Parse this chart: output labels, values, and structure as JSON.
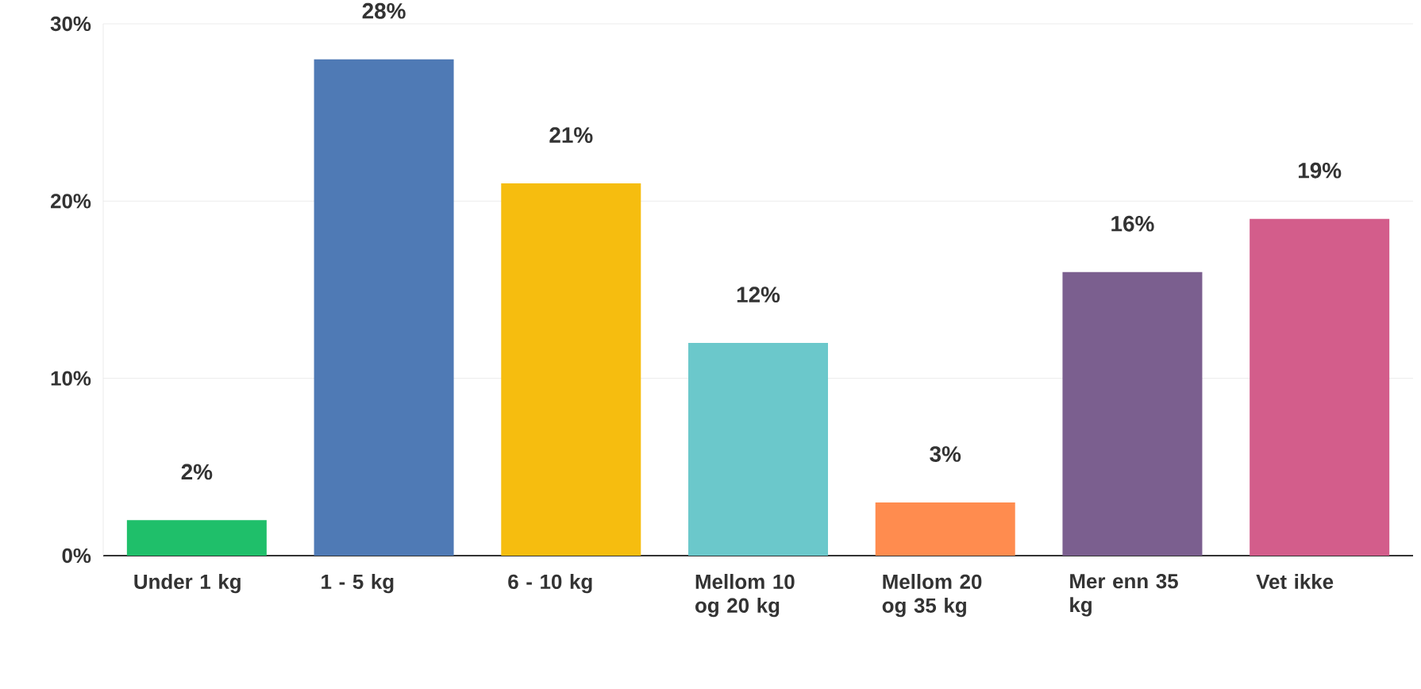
{
  "chart_data": {
    "type": "bar",
    "categories": [
      "Under 1 kg",
      "1 - 5 kg",
      "6 - 10 kg",
      "Mellom 10 og 20 kg",
      "Mellom 20 og 35 kg",
      "Mer enn 35 kg",
      "Vet ikke"
    ],
    "values": [
      2,
      28,
      21,
      12,
      3,
      16,
      19
    ],
    "value_labels": [
      "2%",
      "28%",
      "21%",
      "12%",
      "3%",
      "16%",
      "19%"
    ],
    "colors": [
      "#1fbf6a",
      "#4f7ab5",
      "#f6bd0f",
      "#6bc8cb",
      "#ff8c4f",
      "#7b5f8f",
      "#d35d8b"
    ],
    "ylim": [
      0,
      30
    ],
    "yticks": [
      {
        "value": 0,
        "label": "0%"
      },
      {
        "value": 10,
        "label": "10%"
      },
      {
        "value": 20,
        "label": "20%"
      },
      {
        "value": 30,
        "label": "30%"
      }
    ],
    "grid": "y"
  }
}
